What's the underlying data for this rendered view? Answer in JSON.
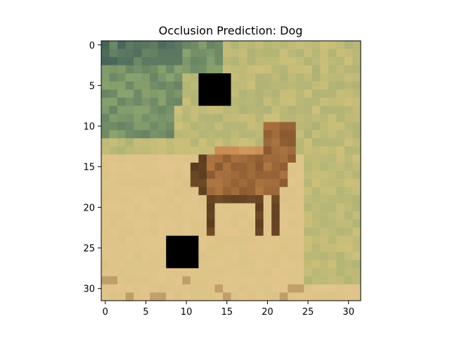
{
  "title": "Occlusion Prediction: Dog",
  "image": {
    "grid_size": 32,
    "x_ticks": [
      "0",
      "5",
      "10",
      "15",
      "20",
      "25",
      "30"
    ],
    "y_ticks": [
      "0",
      "5",
      "10",
      "15",
      "20",
      "25",
      "30"
    ],
    "occlusion_patches": [
      {
        "x_start": 12,
        "y_start": 4,
        "width": 4,
        "height": 4,
        "color": "#000000"
      },
      {
        "x_start": 8,
        "y_start": 24,
        "width": 4,
        "height": 4,
        "color": "#000000"
      }
    ],
    "colors": {
      "sky_dark": "#45655a",
      "foliage": "#8aa36e",
      "grass": "#cdc07a",
      "ground": "#e2c58d",
      "dog_dark": "#5a3c1f",
      "dog_mid": "#8a5a30",
      "dog_light": "#c88a4f"
    }
  }
}
